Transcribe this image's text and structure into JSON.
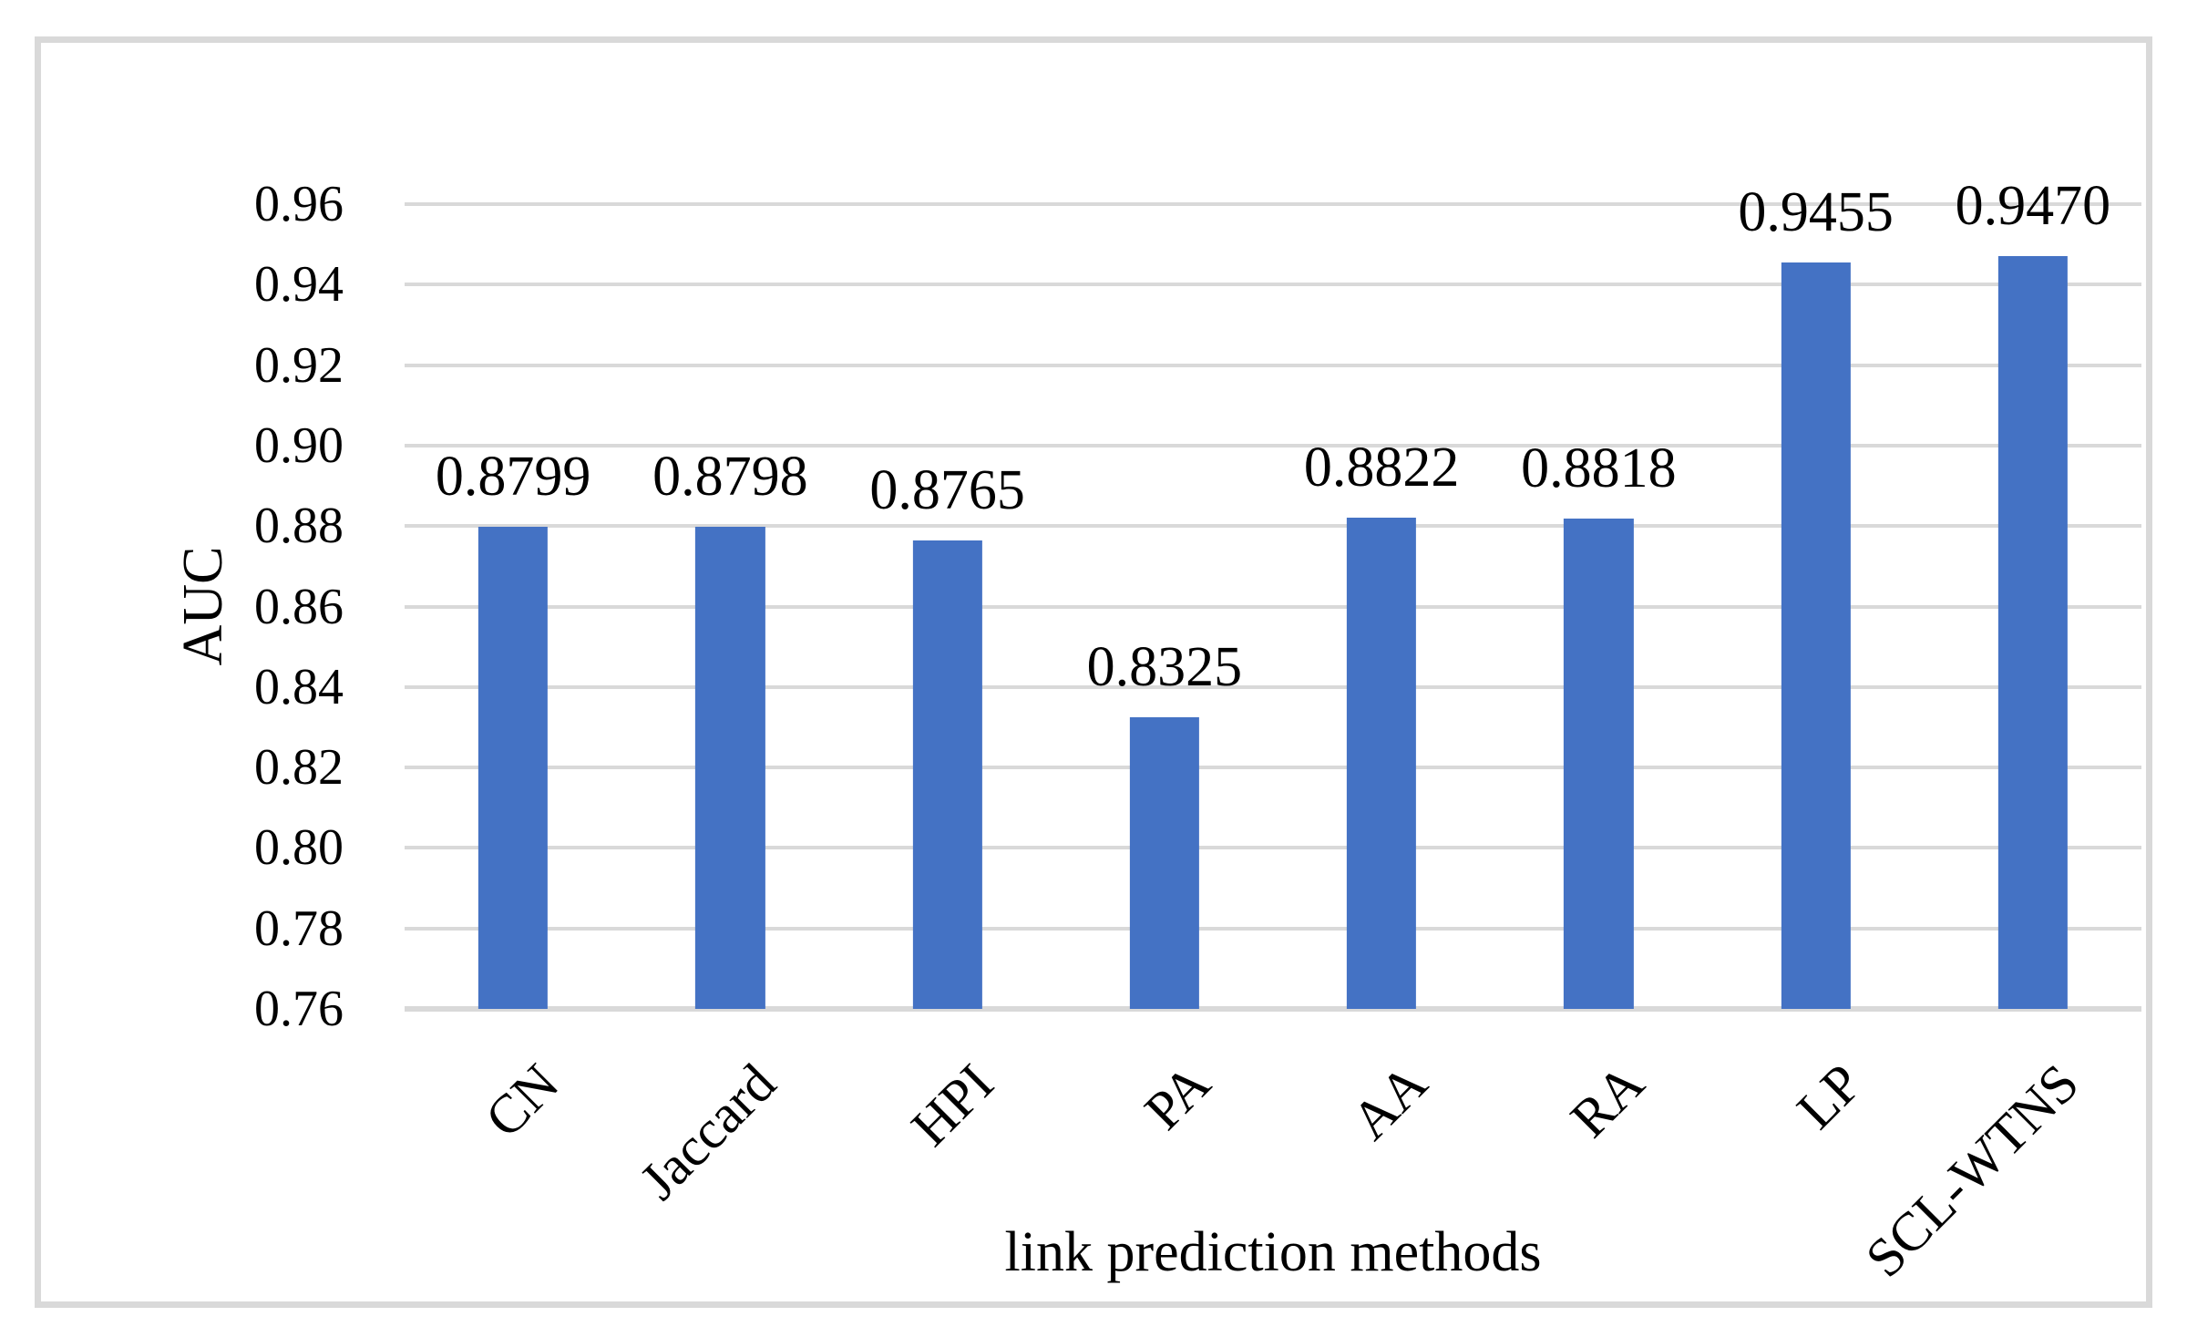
{
  "chart_data": {
    "type": "bar",
    "categories": [
      "CN",
      "Jaccard",
      "HPI",
      "PA",
      "AA",
      "RA",
      "LP",
      "SCL-WTNS"
    ],
    "values": [
      0.8799,
      0.8798,
      0.8765,
      0.8325,
      0.8822,
      0.8818,
      0.9455,
      0.947
    ],
    "value_labels": [
      "0.8799",
      "0.8798",
      "0.8765",
      "0.8325",
      "0.8822",
      "0.8818",
      "0.9455",
      "0.9470"
    ],
    "xlabel": "link prediction methods",
    "ylabel": "AUC",
    "ylim": [
      0.76,
      0.96
    ],
    "ytick_step": 0.02,
    "yticks": [
      "0.76",
      "0.78",
      "0.80",
      "0.82",
      "0.84",
      "0.86",
      "0.88",
      "0.90",
      "0.92",
      "0.94",
      "0.96"
    ],
    "grid": "horizontal",
    "legend": "none",
    "bar_width_fraction": 0.32,
    "colors": {
      "bar": "#4472C4",
      "gridline": "#D9D9D9",
      "axis_line": "#D9D9D9",
      "frame_border": "#D9D9D9",
      "text": "#000000",
      "background": "#FFFFFF"
    }
  }
}
